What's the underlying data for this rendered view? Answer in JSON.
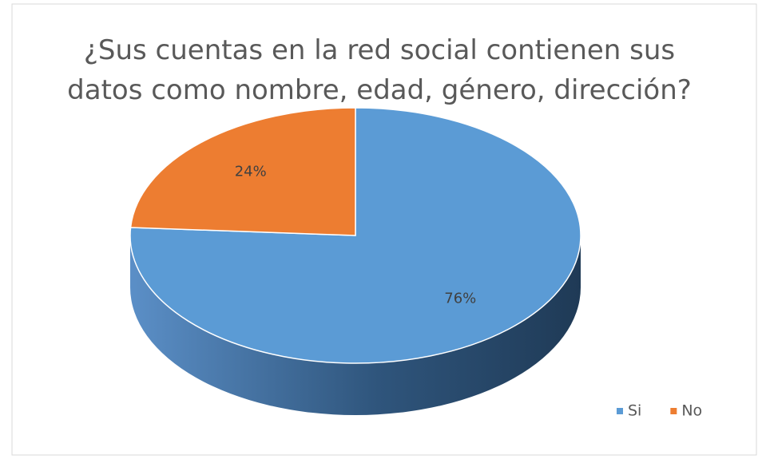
{
  "chart_data": {
    "type": "pie",
    "title": "¿Sus cuentas en la red social contienen sus datos como nombre, edad, género, dirección?",
    "categories": [
      "Si",
      "No"
    ],
    "values": [
      76,
      24
    ],
    "value_labels": [
      "76%",
      "24%"
    ],
    "colors": [
      "#5b9bd5",
      "#ed7d31"
    ],
    "legend": "bottom-right"
  }
}
